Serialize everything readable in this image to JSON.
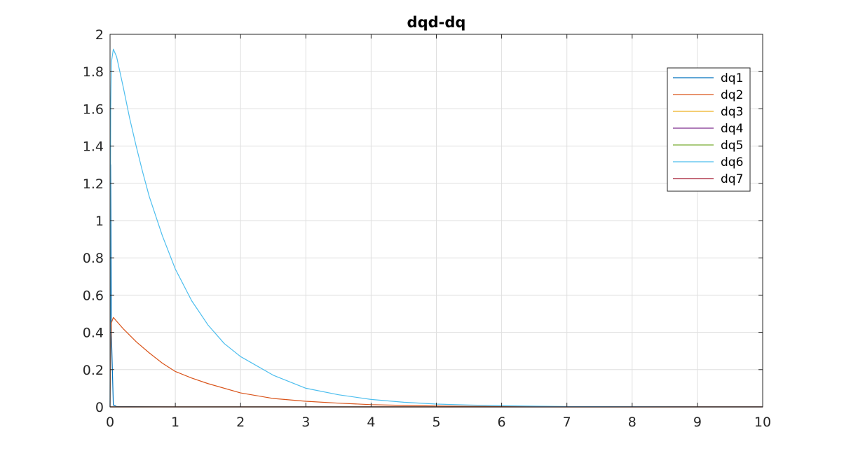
{
  "chart_data": {
    "type": "line",
    "title": "dqd-dq",
    "xlabel": "",
    "ylabel": "",
    "xlim": [
      0,
      10
    ],
    "ylim": [
      0,
      2
    ],
    "xticks": [
      0,
      1,
      2,
      3,
      4,
      5,
      6,
      7,
      8,
      9,
      10
    ],
    "yticks": [
      0,
      0.2,
      0.4,
      0.6,
      0.8,
      1,
      1.2,
      1.4,
      1.6,
      1.8,
      2
    ],
    "xtick_labels": [
      "0",
      "1",
      "2",
      "3",
      "4",
      "5",
      "6",
      "7",
      "8",
      "9",
      "10"
    ],
    "ytick_labels": [
      "0",
      "0.2",
      "0.4",
      "0.6",
      "0.8",
      "1",
      "1.2",
      "1.4",
      "1.6",
      "1.8",
      "2"
    ],
    "grid": true,
    "legend_position": "top-right",
    "series": [
      {
        "name": "dq1",
        "color": "#0072BD",
        "x": [
          0,
          0.01,
          0.02,
          0.05,
          0.1,
          0.5,
          1,
          2,
          5,
          10
        ],
        "y": [
          0,
          1.3,
          0.4,
          0.01,
          0.002,
          0.001,
          0,
          0,
          0,
          0
        ]
      },
      {
        "name": "dq2",
        "color": "#D95319",
        "x": [
          0,
          0.01,
          0.02,
          0.05,
          0.1,
          0.2,
          0.4,
          0.6,
          0.8,
          1,
          1.25,
          1.5,
          2,
          2.5,
          3,
          3.5,
          4,
          4.5,
          5,
          5.5,
          6,
          6.25,
          7,
          8,
          9,
          10
        ],
        "y": [
          0,
          0.32,
          0.45,
          0.48,
          0.46,
          0.42,
          0.35,
          0.29,
          0.235,
          0.19,
          0.155,
          0.125,
          0.075,
          0.045,
          0.03,
          0.02,
          0.012,
          0.008,
          0.005,
          0.003,
          0.002,
          0.001,
          0,
          0,
          0,
          0
        ]
      },
      {
        "name": "dq3",
        "color": "#EDB120",
        "x": [
          0,
          10
        ],
        "y": [
          0,
          0
        ]
      },
      {
        "name": "dq4",
        "color": "#7E2F8E",
        "x": [
          0,
          10
        ],
        "y": [
          0,
          0
        ]
      },
      {
        "name": "dq5",
        "color": "#77AC30",
        "x": [
          0,
          10
        ],
        "y": [
          0,
          0
        ]
      },
      {
        "name": "dq6",
        "color": "#4DBEEE",
        "x": [
          0,
          0.005,
          0.01,
          0.02,
          0.05,
          0.1,
          0.2,
          0.3,
          0.4,
          0.5,
          0.6,
          0.8,
          1,
          1.25,
          1.5,
          1.75,
          2,
          2.5,
          3,
          3.5,
          4,
          4.5,
          5,
          5.5,
          6,
          7,
          8,
          9,
          10
        ],
        "y": [
          0,
          1.05,
          1.6,
          1.85,
          1.92,
          1.88,
          1.72,
          1.55,
          1.4,
          1.26,
          1.13,
          0.92,
          0.74,
          0.57,
          0.44,
          0.34,
          0.27,
          0.17,
          0.1,
          0.065,
          0.04,
          0.025,
          0.015,
          0.01,
          0.006,
          0.002,
          0.001,
          0,
          0
        ]
      },
      {
        "name": "dq7",
        "color": "#A2142F",
        "x": [
          0,
          10
        ],
        "y": [
          0,
          0
        ]
      }
    ]
  }
}
